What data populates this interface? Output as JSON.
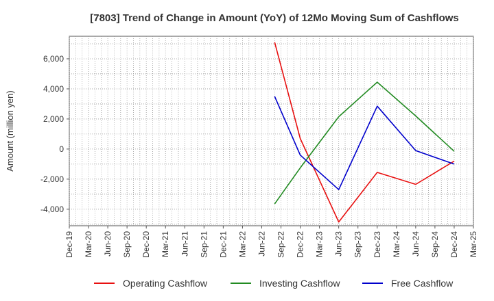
{
  "chart_data": {
    "type": "line",
    "title": "[7803]  Trend of Change in Amount (YoY) of 12Mo Moving Sum of Cashflows",
    "xlabel": "",
    "ylabel": "Amount (million yen)",
    "ylim": [
      -5100,
      7500
    ],
    "y_ticks": [
      -4000,
      -2000,
      0,
      2000,
      4000,
      6000
    ],
    "y_tick_labels": [
      "-4,000",
      "-2,000",
      "0",
      "2,000",
      "4,000",
      "6,000"
    ],
    "x_tick_labels": [
      "Dec-19",
      "Mar-20",
      "Jun-20",
      "Sep-20",
      "Dec-20",
      "Mar-21",
      "Jun-21",
      "Sep-21",
      "Dec-21",
      "Mar-22",
      "Jun-22",
      "Sep-22",
      "Dec-22",
      "Mar-23",
      "Jun-23",
      "Sep-23",
      "Dec-23",
      "Mar-24",
      "Jun-24",
      "Sep-24",
      "Dec-24",
      "Mar-25"
    ],
    "grid": true,
    "legend_position": "bottom",
    "series": [
      {
        "name": "Operating Cashflow",
        "color": "#e81010",
        "x": [
          "Aug-22",
          "Dec-22",
          "Jun-23",
          "Dec-23",
          "Jun-24",
          "Dec-24"
        ],
        "x_index": [
          10.67,
          12,
          14,
          16,
          18,
          20
        ],
        "values": [
          7100,
          700,
          -4850,
          -1550,
          -2350,
          -800
        ]
      },
      {
        "name": "Investing Cashflow",
        "color": "#228b22",
        "x": [
          "Aug-22",
          "Dec-22",
          "Jun-23",
          "Dec-23",
          "Jun-24",
          "Dec-24"
        ],
        "x_index": [
          10.67,
          12,
          14,
          16,
          18,
          20
        ],
        "values": [
          -3650,
          -1250,
          2150,
          4450,
          2200,
          -150
        ]
      },
      {
        "name": "Free Cashflow",
        "color": "#0000cc",
        "x": [
          "Aug-22",
          "Dec-22",
          "Jun-23",
          "Dec-23",
          "Jun-24",
          "Dec-24"
        ],
        "x_index": [
          10.67,
          12,
          14,
          16,
          18,
          20
        ],
        "values": [
          3500,
          -400,
          -2700,
          2850,
          -100,
          -1000
        ]
      }
    ]
  }
}
